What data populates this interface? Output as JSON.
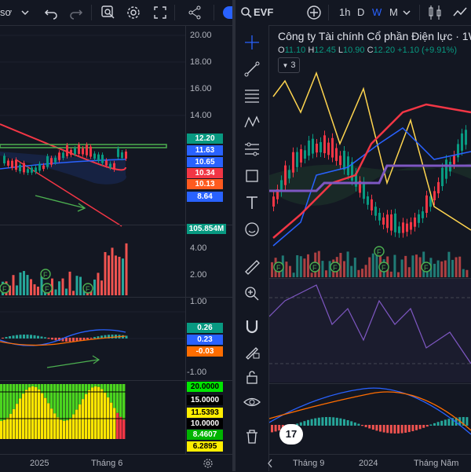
{
  "left_toolbar": {
    "partial_label": "sơ",
    "icons": [
      "chevron-down-icon",
      "undo-icon",
      "redo-icon",
      "zoom-icon",
      "gear-icon",
      "fullscreen-icon",
      "share-icon"
    ]
  },
  "right_toolbar": {
    "symbol": "EVF",
    "intervals": [
      "1h",
      "D",
      "W",
      "M"
    ],
    "active_interval": "W"
  },
  "chart_title": {
    "company": "Công ty Tài chính Cổ phần Điện lực · 1W",
    "open_label": "O",
    "open": "11.10",
    "high_label": "H",
    "high": "12.45",
    "low_label": "L",
    "low": "10.90",
    "close_label": "C",
    "close": "12.20",
    "change": "+1.10 (+9.91%)",
    "indicators_count": "3"
  },
  "price_scale": {
    "ticks": [
      "20.00",
      "18.00",
      "16.00",
      "14.00"
    ],
    "badges": [
      {
        "text": "12.20",
        "color": "#089981"
      },
      {
        "text": "11.63",
        "color": "#2962ff"
      },
      {
        "text": "10.65",
        "color": "#2962ff"
      },
      {
        "text": "10.34",
        "color": "#f23645"
      },
      {
        "text": "10.13",
        "color": "#ff5a1f"
      },
      {
        "text": "8.64",
        "color": "#2962ff"
      }
    ]
  },
  "volume_scale": {
    "badge": "105.854M",
    "ticks": [
      "4.00",
      "2.00"
    ]
  },
  "macd_scale": {
    "ticks": [
      "1.00",
      "-1.00"
    ],
    "badges": [
      {
        "text": "0.26",
        "color": "#089981"
      },
      {
        "text": "0.23",
        "color": "#2962ff"
      },
      {
        "text": "-0.03",
        "color": "#ff6d00"
      }
    ]
  },
  "osc_scale": {
    "badges": [
      {
        "text": "20.0000",
        "color": "#00e600",
        "fg": "#000000"
      },
      {
        "text": "15.0000",
        "color": "#000000",
        "fg": "#ffffff"
      },
      {
        "text": "11.5393",
        "color": "#ffee00",
        "fg": "#000000"
      },
      {
        "text": "10.0000",
        "color": "#000000",
        "fg": "#ffffff"
      },
      {
        "text": "8.4607",
        "color": "#00b400",
        "fg": "#ffffff"
      },
      {
        "text": "6.2895",
        "color": "#ffee00",
        "fg": "#000000"
      }
    ]
  },
  "left_time_axis": [
    "2025",
    "Tháng 6"
  ],
  "right_time_axis": [
    "Tháng 9",
    "2024",
    "Tháng Năm"
  ],
  "earnings_marker": "F",
  "tv_logo": "17",
  "colors": {
    "background": "#131722",
    "up": "#089981",
    "down": "#f23645",
    "accent": "#2962ff"
  }
}
